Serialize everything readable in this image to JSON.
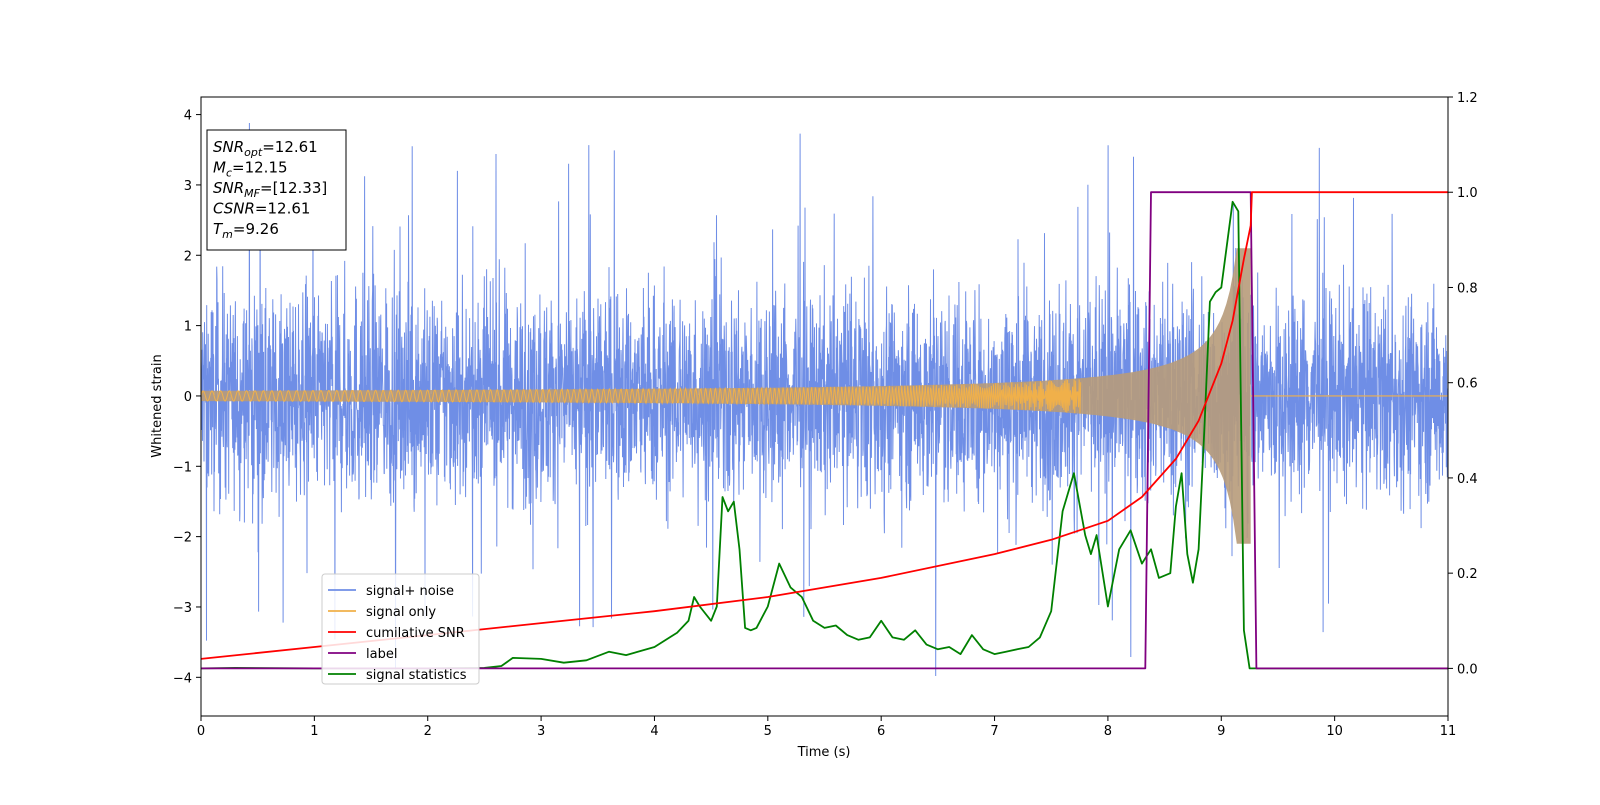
{
  "chart_data": {
    "type": "line",
    "xlabel": "Time (s)",
    "ylabel": "Whitened strain",
    "xlim": [
      0,
      11
    ],
    "ylim_left": [
      -4.55,
      4.25
    ],
    "ylim_right": [
      -0.1,
      1.2
    ],
    "x_ticks": [
      "0",
      "1",
      "2",
      "3",
      "4",
      "5",
      "6",
      "7",
      "8",
      "9",
      "10",
      "11"
    ],
    "y_left_ticks": [
      "−4",
      "−3",
      "−2",
      "−1",
      "0",
      "1",
      "2",
      "3",
      "4"
    ],
    "y_right_ticks": [
      "0.0",
      "0.2",
      "0.4",
      "0.6",
      "0.8",
      "1.0",
      "1.2"
    ],
    "grid": false,
    "legend_placement": "lower-left",
    "colors": {
      "signal_noise": "#6f8ee6",
      "signal_only": "#f0b04a",
      "signal_overlap": "#b79b7a",
      "cumulative_snr": "#ff0000",
      "label": "#800080",
      "signal_statistics": "#008000"
    },
    "legend": [
      {
        "key": "signal_noise",
        "text": "signal+ noise"
      },
      {
        "key": "signal_only",
        "text": "signal only"
      },
      {
        "key": "cumulative_snr",
        "text": "cumilative SNR"
      },
      {
        "key": "label",
        "text": "label"
      },
      {
        "key": "signal_statistics",
        "text": "signal statistics"
      }
    ],
    "info_box": [
      {
        "base": "SNR",
        "sub": "opt",
        "value": "=12.61"
      },
      {
        "base": "M",
        "sub": "c",
        "value": "=12.15"
      },
      {
        "base": "SNR",
        "sub": "MF",
        "value": "=[12.33]"
      },
      {
        "base": "CSNR",
        "sub": "",
        "value": "=12.61"
      },
      {
        "base": "T",
        "sub": "m",
        "value": "=9.26"
      }
    ],
    "series": [
      {
        "name": "signal+ noise",
        "axis": "left",
        "style": "dense-noise",
        "amplitude_typical": 1.3,
        "amplitude_peak": 3.8,
        "x_range": [
          0,
          11
        ]
      },
      {
        "name": "signal only",
        "axis": "left",
        "style": "chirp",
        "t_merger": 9.26,
        "amplitude_at_merger": 2.0,
        "x_range": [
          0,
          9.26
        ]
      },
      {
        "name": "cumilative SNR",
        "axis": "right",
        "x": [
          0,
          1,
          2,
          3,
          4,
          5,
          6,
          7,
          7.5,
          8,
          8.3,
          8.6,
          8.8,
          9.0,
          9.1,
          9.2,
          9.26,
          9.27,
          11
        ],
        "y": [
          0.02,
          0.045,
          0.07,
          0.095,
          0.12,
          0.15,
          0.19,
          0.24,
          0.27,
          0.31,
          0.36,
          0.44,
          0.52,
          0.64,
          0.73,
          0.86,
          0.93,
          1.0,
          1.0
        ]
      },
      {
        "name": "label",
        "axis": "right",
        "x": [
          0,
          8.33,
          8.38,
          9.26,
          9.31,
          11
        ],
        "y": [
          0,
          0,
          1,
          1,
          0,
          0
        ]
      },
      {
        "name": "signal statistics",
        "axis": "right",
        "x": [
          0,
          0.3,
          1,
          2,
          2.5,
          2.65,
          2.75,
          3.0,
          3.2,
          3.4,
          3.6,
          3.75,
          4.0,
          4.2,
          4.3,
          4.35,
          4.4,
          4.5,
          4.55,
          4.6,
          4.65,
          4.7,
          4.75,
          4.8,
          4.85,
          4.9,
          5.0,
          5.1,
          5.2,
          5.3,
          5.4,
          5.5,
          5.6,
          5.7,
          5.8,
          5.9,
          6.0,
          6.1,
          6.2,
          6.3,
          6.4,
          6.5,
          6.6,
          6.7,
          6.8,
          6.9,
          7.0,
          7.1,
          7.2,
          7.3,
          7.4,
          7.5,
          7.6,
          7.7,
          7.8,
          7.85,
          7.9,
          8.0,
          8.1,
          8.2,
          8.3,
          8.38,
          8.45,
          8.55,
          8.6,
          8.65,
          8.7,
          8.75,
          8.8,
          8.85,
          8.9,
          8.95,
          9.0,
          9.1,
          9.15,
          9.2,
          9.25,
          9.3,
          11
        ],
        "y": [
          0.0,
          0.001,
          0.0,
          0.0,
          0.001,
          0.005,
          0.022,
          0.02,
          0.012,
          0.017,
          0.035,
          0.028,
          0.045,
          0.075,
          0.1,
          0.15,
          0.13,
          0.1,
          0.13,
          0.36,
          0.33,
          0.35,
          0.25,
          0.085,
          0.08,
          0.085,
          0.13,
          0.22,
          0.17,
          0.15,
          0.1,
          0.085,
          0.09,
          0.07,
          0.06,
          0.065,
          0.1,
          0.065,
          0.06,
          0.08,
          0.05,
          0.04,
          0.045,
          0.03,
          0.07,
          0.04,
          0.03,
          0.035,
          0.04,
          0.045,
          0.065,
          0.12,
          0.33,
          0.41,
          0.28,
          0.24,
          0.28,
          0.13,
          0.25,
          0.29,
          0.22,
          0.25,
          0.19,
          0.2,
          0.34,
          0.41,
          0.24,
          0.18,
          0.25,
          0.5,
          0.77,
          0.79,
          0.8,
          0.98,
          0.96,
          0.08,
          0.0,
          0.0,
          0.0
        ]
      }
    ]
  }
}
